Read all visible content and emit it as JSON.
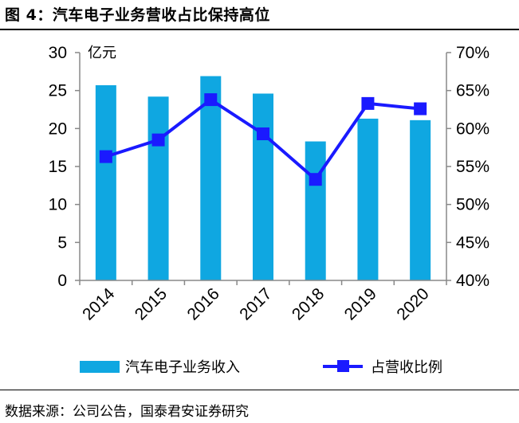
{
  "figure": {
    "title": "图 4：汽车电子业务营收占比保持高位",
    "source": "数据来源：公司公告，国泰君安证券研究"
  },
  "chart_data": {
    "type": "bar+line",
    "categories": [
      "2014",
      "2015",
      "2016",
      "2017",
      "2018",
      "2019",
      "2020"
    ],
    "series": [
      {
        "name": "汽车电子业务收入",
        "type": "bar",
        "axis": "left",
        "values": [
          25.7,
          24.2,
          26.9,
          24.6,
          18.3,
          21.3,
          21.1
        ],
        "color": "#0fa7e1"
      },
      {
        "name": "占营收比例",
        "type": "line",
        "axis": "right",
        "values": [
          56.3,
          58.5,
          63.8,
          59.3,
          53.3,
          63.3,
          62.6
        ],
        "color": "#1a1aff"
      }
    ],
    "y_left": {
      "unit": "亿元",
      "range": [
        0,
        30
      ],
      "ticks": [
        "0",
        "5",
        "10",
        "15",
        "20",
        "25",
        "30"
      ]
    },
    "y_right": {
      "range": [
        40,
        70
      ],
      "ticks": [
        "40%",
        "45%",
        "50%",
        "55%",
        "60%",
        "65%",
        "70%"
      ]
    },
    "legend": "bottom",
    "grid": false
  }
}
